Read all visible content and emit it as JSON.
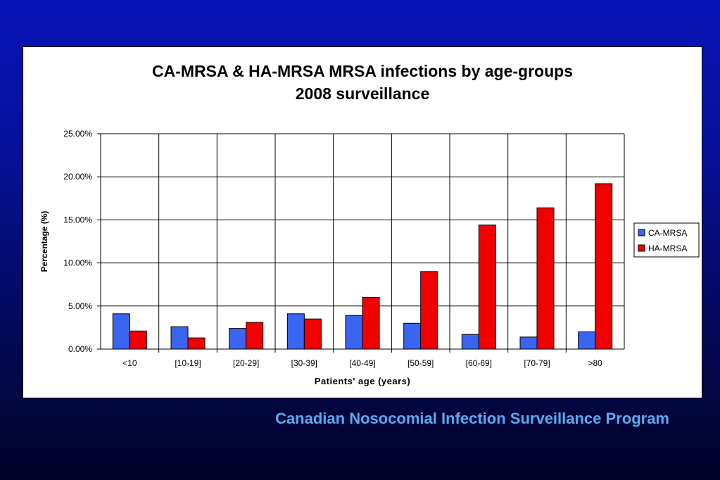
{
  "chart_data": {
    "type": "bar",
    "title_line1": "CA-MRSA & HA-MRSA MRSA infections by age-groups",
    "title_line2": "2008 surveillance",
    "xlabel": "Patients' age (years)",
    "ylabel": "Percentage (%)",
    "categories": [
      "<10",
      "[10-19]",
      "[20-29]",
      "[30-39]",
      "[40-49]",
      "[50-59]",
      "[60-69]",
      "[70-79]",
      ">80"
    ],
    "series": [
      {
        "name": "CA-MRSA",
        "color": "#3a64f2",
        "values": [
          4.1,
          2.6,
          2.4,
          4.1,
          3.9,
          3.0,
          1.7,
          1.4,
          2.0
        ]
      },
      {
        "name": "HA-MRSA",
        "color": "#f20000",
        "values": [
          2.1,
          1.3,
          3.1,
          3.5,
          6.0,
          9.0,
          14.4,
          16.4,
          19.2
        ]
      }
    ],
    "ylim": [
      0,
      25
    ],
    "yticks": [
      "0.00%",
      "5.00%",
      "10.00%",
      "15.00%",
      "20.00%",
      "25.00%"
    ],
    "grid": true,
    "legend_position": "right"
  },
  "footer": "Canadian Nosocomial Infection Surveillance Program"
}
